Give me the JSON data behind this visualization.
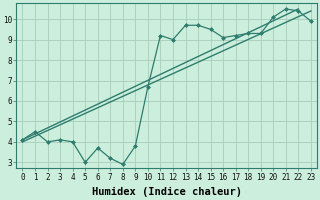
{
  "title": "",
  "xlabel": "Humidex (Indice chaleur)",
  "bg_color": "#cceedd",
  "line_color": "#2e7d6e",
  "marker_color": "#2e7d6e",
  "xlim": [
    -0.5,
    23.5
  ],
  "ylim": [
    2.7,
    10.8
  ],
  "yticks": [
    3,
    4,
    5,
    6,
    7,
    8,
    9,
    10
  ],
  "xticks": [
    0,
    1,
    2,
    3,
    4,
    5,
    6,
    7,
    8,
    9,
    10,
    11,
    12,
    13,
    14,
    15,
    16,
    17,
    18,
    19,
    20,
    21,
    22,
    23
  ],
  "series1_x": [
    0,
    1,
    2,
    3,
    4,
    5,
    6,
    7,
    8,
    9,
    10,
    11,
    12,
    13,
    14,
    15,
    16,
    17,
    18,
    19,
    20,
    21,
    22,
    23
  ],
  "series1_y": [
    4.1,
    4.5,
    4.0,
    4.1,
    4.0,
    3.0,
    3.7,
    3.2,
    2.9,
    3.8,
    6.7,
    9.2,
    9.0,
    9.7,
    9.7,
    9.5,
    9.1,
    9.2,
    9.3,
    9.3,
    10.1,
    10.5,
    10.4,
    9.9
  ],
  "trend1_x": [
    0,
    23
  ],
  "trend1_y": [
    4.0,
    10.4
  ],
  "trend2_x": [
    0,
    22
  ],
  "trend2_y": [
    4.1,
    10.5
  ],
  "grid_color": "#aaccbb",
  "tick_fontsize": 5.5,
  "label_fontsize": 7.5
}
